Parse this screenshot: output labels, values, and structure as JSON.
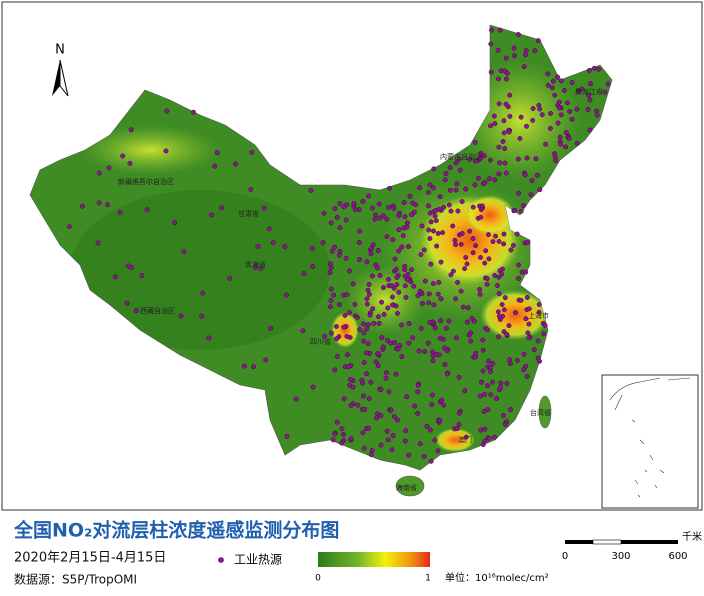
{
  "header": {
    "title": "全国NO₂对流层柱浓度遥感监测分布图",
    "date": "2020年2月15日-4月15日",
    "source": "数据源：S5P/TropOMI"
  },
  "north": "N",
  "legend": {
    "point_label": "工业热源",
    "colorbar_min": "0",
    "colorbar_max": "1",
    "unit": "单位：10¹⁶molec/cm²"
  },
  "scale_bar": {
    "ticks": [
      "0",
      "300",
      "600"
    ],
    "unit": "千米"
  },
  "labels": {
    "heilongjiang": "黑龙江省",
    "neimenggu": "内蒙古自治区",
    "xinjiang": "新疆维吾尔自治区",
    "gansu": "甘肃省",
    "qinghai": "青海省",
    "xizang": "西藏自治区",
    "sichuan": "四川省",
    "taiwan": "台湾省",
    "hainan": "海南省",
    "shanghai": "上海市",
    "macau": "澳门"
  }
}
